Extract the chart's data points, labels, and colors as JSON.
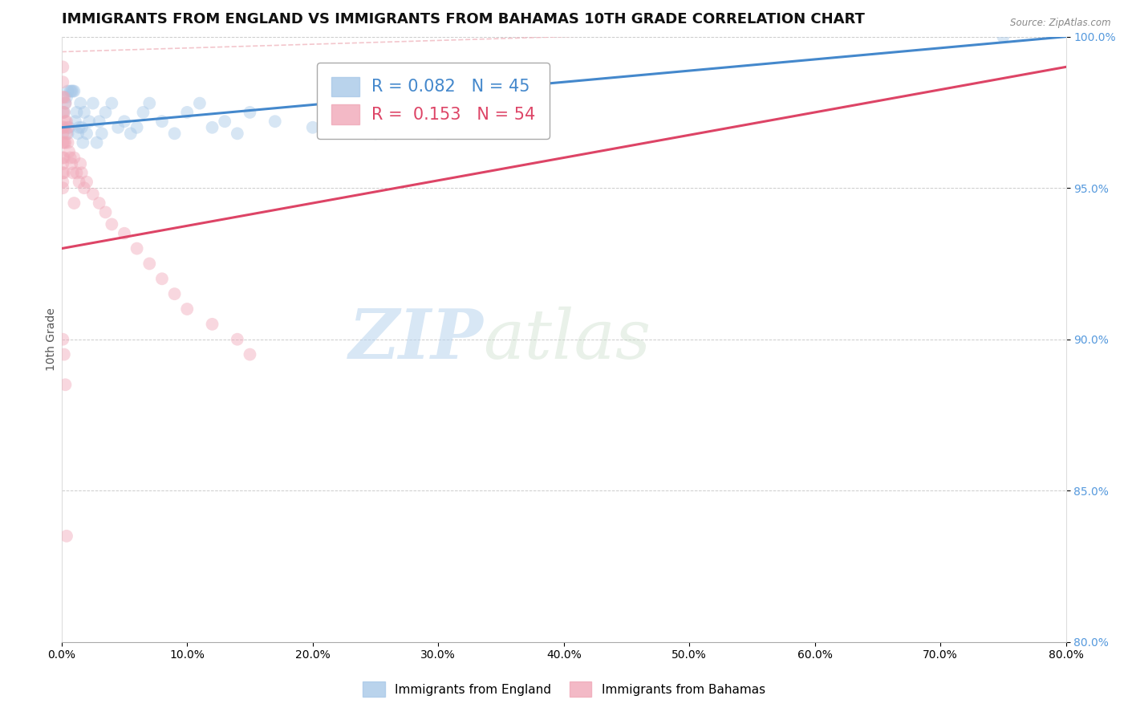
{
  "title": "IMMIGRANTS FROM ENGLAND VS IMMIGRANTS FROM BAHAMAS 10TH GRADE CORRELATION CHART",
  "source": "Source: ZipAtlas.com",
  "ylabel": "10th Grade",
  "xlim": [
    0.0,
    80.0
  ],
  "ylim": [
    80.0,
    100.0
  ],
  "xticks": [
    0.0,
    10.0,
    20.0,
    30.0,
    40.0,
    50.0,
    60.0,
    70.0,
    80.0
  ],
  "yticks": [
    80.0,
    85.0,
    90.0,
    95.0,
    100.0
  ],
  "legend_england": {
    "R": 0.082,
    "N": 45
  },
  "legend_bahamas": {
    "R": 0.153,
    "N": 54
  },
  "england_scatter_color": "#a8c8e8",
  "bahamas_scatter_color": "#f0a8b8",
  "england_line_color": "#4488cc",
  "bahamas_line_color": "#dd4466",
  "diag_line_color": "#f0b8c0",
  "background_color": "#ffffff",
  "grid_color": "#cccccc",
  "yaxis_label_color": "#5599dd",
  "england_x": [
    0.2,
    0.3,
    0.4,
    0.5,
    0.5,
    0.6,
    0.7,
    0.8,
    0.9,
    1.0,
    1.1,
    1.2,
    1.3,
    1.4,
    1.5,
    1.6,
    1.7,
    1.8,
    2.0,
    2.2,
    2.5,
    2.8,
    3.0,
    3.2,
    3.5,
    4.0,
    4.5,
    5.0,
    5.5,
    6.0,
    6.5,
    7.0,
    8.0,
    9.0,
    10.0,
    11.0,
    12.0,
    13.0,
    14.0,
    15.0,
    17.0,
    20.0,
    25.0,
    30.0,
    75.0
  ],
  "england_y": [
    97.5,
    97.8,
    98.0,
    98.2,
    96.8,
    97.0,
    98.2,
    98.2,
    98.2,
    98.2,
    97.2,
    97.5,
    96.8,
    97.0,
    97.8,
    97.0,
    96.5,
    97.5,
    96.8,
    97.2,
    97.8,
    96.5,
    97.2,
    96.8,
    97.5,
    97.8,
    97.0,
    97.2,
    96.8,
    97.0,
    97.5,
    97.8,
    97.2,
    96.8,
    97.5,
    97.8,
    97.0,
    97.2,
    96.8,
    97.5,
    97.2,
    97.0,
    96.8,
    96.8,
    100.0
  ],
  "bahamas_x": [
    0.1,
    0.1,
    0.1,
    0.1,
    0.1,
    0.1,
    0.1,
    0.1,
    0.1,
    0.1,
    0.1,
    0.1,
    0.2,
    0.2,
    0.2,
    0.2,
    0.2,
    0.2,
    0.3,
    0.3,
    0.3,
    0.4,
    0.4,
    0.5,
    0.5,
    0.6,
    0.7,
    0.8,
    0.9,
    1.0,
    1.2,
    1.4,
    1.5,
    1.6,
    1.8,
    2.0,
    2.5,
    3.0,
    3.5,
    4.0,
    5.0,
    6.0,
    7.0,
    8.0,
    9.0,
    10.0,
    12.0,
    14.0,
    15.0,
    1.0,
    0.1,
    0.2,
    0.3,
    0.4
  ],
  "bahamas_y": [
    99.0,
    98.5,
    98.0,
    97.5,
    97.0,
    96.8,
    96.5,
    96.0,
    95.8,
    95.5,
    95.2,
    95.0,
    98.0,
    97.5,
    97.0,
    96.5,
    96.0,
    95.5,
    97.8,
    97.2,
    96.5,
    97.2,
    96.8,
    97.0,
    96.5,
    96.2,
    96.0,
    95.8,
    95.5,
    96.0,
    95.5,
    95.2,
    95.8,
    95.5,
    95.0,
    95.2,
    94.8,
    94.5,
    94.2,
    93.8,
    93.5,
    93.0,
    92.5,
    92.0,
    91.5,
    91.0,
    90.5,
    90.0,
    89.5,
    94.5,
    90.0,
    89.5,
    88.5,
    83.5
  ],
  "watermark_zip": "ZIP",
  "watermark_atlas": "atlas",
  "marker_size": 130,
  "marker_alpha": 0.45,
  "title_fontsize": 13,
  "axis_label_fontsize": 10,
  "tick_fontsize": 10
}
